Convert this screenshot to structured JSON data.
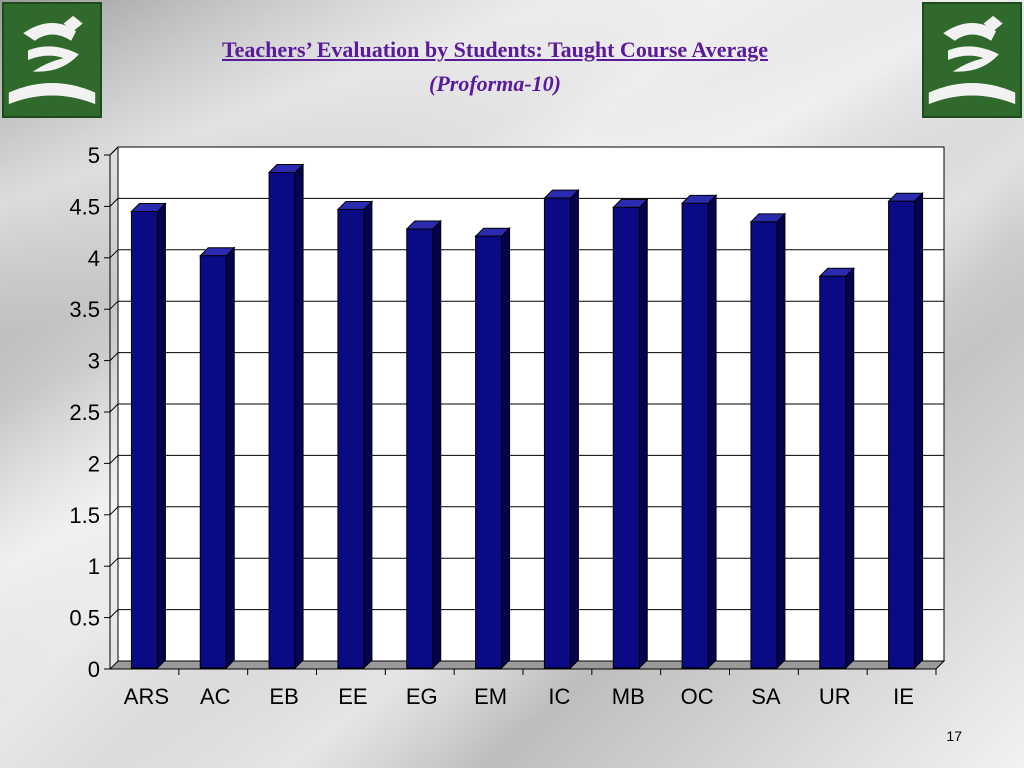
{
  "header": {
    "title": "Teachers’ Evaluation by Students: Taught Course Average",
    "subtitle": "(Proforma-10)",
    "logo_icon": "institution-logo-icon"
  },
  "footer": {
    "page_number": "17"
  },
  "colors": {
    "bar_front": "#0a0a85",
    "bar_side": "#03034f",
    "bar_top": "#2b2bb0"
  },
  "chart_data": {
    "type": "bar",
    "title": "",
    "xlabel": "",
    "ylabel": "",
    "categories": [
      "ARS",
      "AC",
      "EB",
      "EE",
      "EG",
      "EM",
      "IC",
      "MB",
      "OC",
      "SA",
      "UR",
      "IE"
    ],
    "values": [
      4.45,
      4.02,
      4.83,
      4.47,
      4.28,
      4.21,
      4.58,
      4.49,
      4.53,
      4.35,
      3.82,
      4.55
    ],
    "ylim": [
      0,
      5
    ],
    "yticks": [
      "0",
      "0.5",
      "1",
      "1.5",
      "2",
      "2.5",
      "3",
      "3.5",
      "4",
      "4.5",
      "5"
    ],
    "grid": true,
    "legend": "none"
  }
}
